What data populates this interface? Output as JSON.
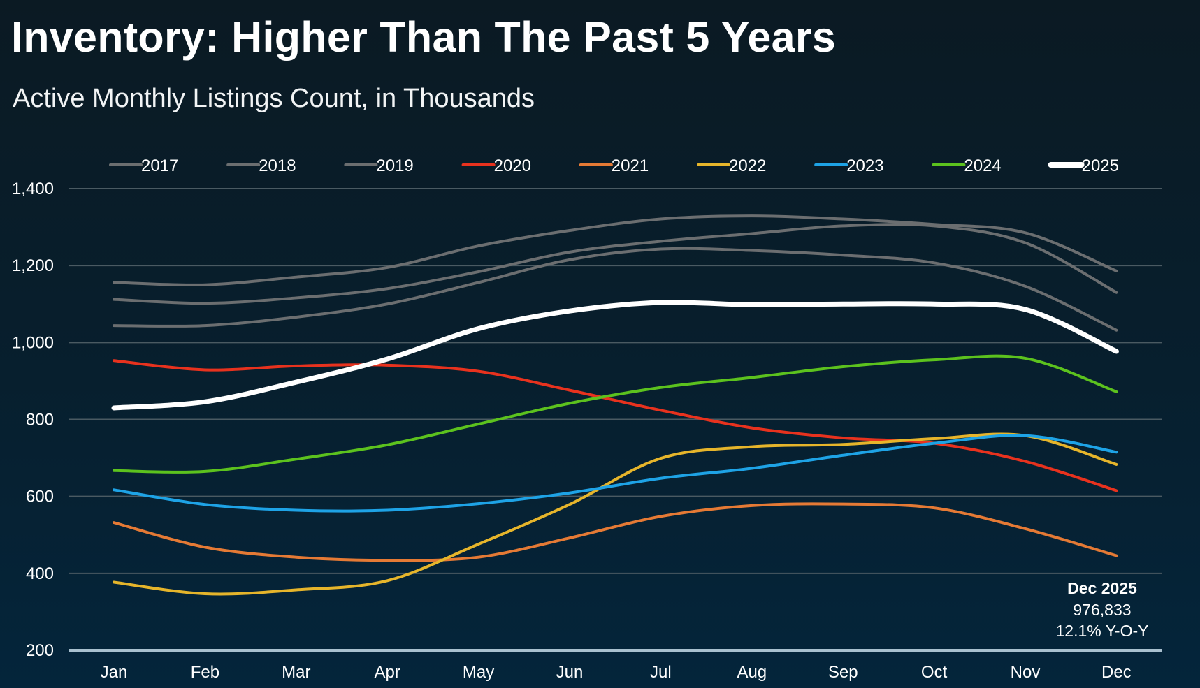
{
  "header": {
    "title": "Inventory: Higher Than The Past 5 Years",
    "subtitle": "Active Monthly Listings Count, in Thousands"
  },
  "chart_data": {
    "type": "line",
    "title": "Inventory: Higher Than The Past 5 Years",
    "subtitle": "Active Monthly Listings Count, in Thousands",
    "xlabel": "",
    "ylabel": "",
    "categories": [
      "Jan",
      "Feb",
      "Mar",
      "Apr",
      "May",
      "Jun",
      "Jul",
      "Aug",
      "Sep",
      "Oct",
      "Nov",
      "Dec"
    ],
    "ylim": [
      200,
      1400
    ],
    "yticks": [
      1400,
      1200,
      1000,
      800,
      600,
      400,
      200
    ],
    "ytick_labels": [
      "1,400",
      "1,200",
      "1,000",
      "800",
      "600",
      "400",
      "200"
    ],
    "grid": true,
    "legend_position": "top",
    "series": [
      {
        "name": "2017",
        "color": "#6b6e70",
        "values": [
          1156,
          1150,
          1170,
          1195,
          1251,
          1291,
          1321,
          1329,
          1321,
          1307,
          1285,
          1186
        ]
      },
      {
        "name": "2018",
        "color": "#6b6e70",
        "values": [
          1112,
          1102,
          1116,
          1140,
          1184,
          1235,
          1263,
          1283,
          1303,
          1303,
          1259,
          1130
        ]
      },
      {
        "name": "2019",
        "color": "#6b6e70",
        "values": [
          1044,
          1044,
          1066,
          1100,
          1156,
          1215,
          1243,
          1239,
          1227,
          1207,
          1146,
          1032
        ]
      },
      {
        "name": "2020",
        "color": "#e8321e",
        "values": [
          953,
          929,
          939,
          941,
          925,
          876,
          824,
          778,
          752,
          738,
          691,
          615
        ]
      },
      {
        "name": "2021",
        "color": "#e57a35",
        "values": [
          532,
          468,
          442,
          434,
          442,
          492,
          548,
          576,
          580,
          570,
          516,
          446
        ]
      },
      {
        "name": "2022",
        "color": "#e6b52b",
        "values": [
          377,
          347,
          357,
          381,
          476,
          579,
          699,
          729,
          735,
          750,
          758,
          683
        ]
      },
      {
        "name": "2023",
        "color": "#1ea3e6",
        "values": [
          617,
          579,
          564,
          564,
          581,
          609,
          647,
          673,
          707,
          738,
          758,
          715
        ]
      },
      {
        "name": "2024",
        "color": "#5cc21e",
        "values": [
          667,
          665,
          697,
          734,
          788,
          842,
          883,
          909,
          937,
          955,
          959,
          872
        ]
      },
      {
        "name": "2025",
        "color": "#ffffff",
        "values": [
          830,
          846,
          897,
          957,
          1036,
          1082,
          1104,
          1098,
          1100,
          1100,
          1086,
          977
        ]
      }
    ],
    "annotation": {
      "line1": "Dec 2025",
      "line2": "976,833",
      "line3": "12.1% Y-O-Y"
    }
  }
}
